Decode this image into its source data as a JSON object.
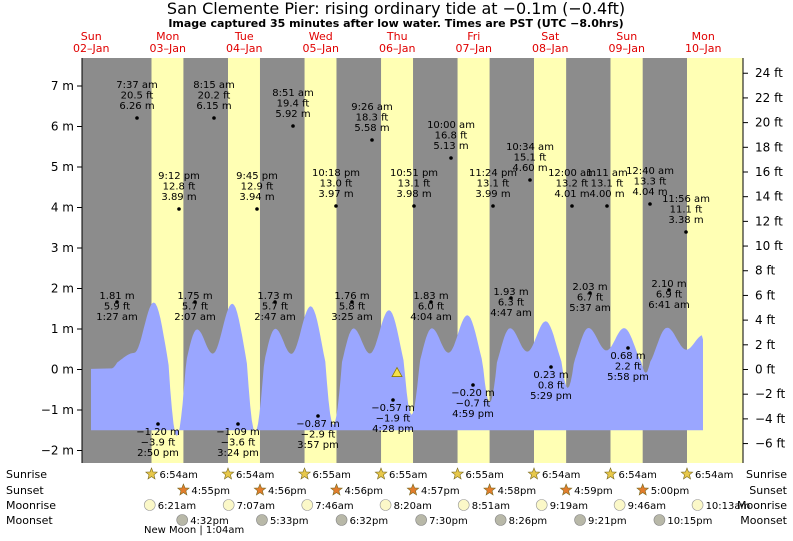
{
  "title": "San Clemente Pier: rising  ordinary tide at −0.1m (−0.4ft)",
  "subtitle": "Image captured 35 minutes after low water. Times are PST (UTC −8.0hrs)",
  "days": [
    {
      "dow": "Sun",
      "date": "02–Jan"
    },
    {
      "dow": "Mon",
      "date": "03–Jan"
    },
    {
      "dow": "Tue",
      "date": "04–Jan"
    },
    {
      "dow": "Wed",
      "date": "05–Jan"
    },
    {
      "dow": "Thu",
      "date": "06–Jan"
    },
    {
      "dow": "Fri",
      "date": "07–Jan"
    },
    {
      "dow": "Sat",
      "date": "08–Jan"
    },
    {
      "dow": "Sun",
      "date": "09–Jan"
    },
    {
      "dow": "Mon",
      "date": "10–Jan"
    }
  ],
  "row_labels": {
    "sunrise": "Sunrise",
    "sunset": "Sunset",
    "moonrise": "Moonrise",
    "moonset": "Moonset"
  },
  "sunrise": [
    "6:54am",
    "6:54am",
    "6:55am",
    "6:55am",
    "6:55am",
    "6:54am",
    "6:54am",
    "6:54am"
  ],
  "sunset": [
    "4:55pm",
    "4:56pm",
    "4:56pm",
    "4:57pm",
    "4:58pm",
    "4:59pm",
    "5:00pm"
  ],
  "moonrise": [
    "6:21am",
    "7:07am",
    "7:46am",
    "8:20am",
    "8:51am",
    "9:19am",
    "9:46am",
    "10:13am"
  ],
  "moonset": [
    "4:32pm",
    "5:33pm",
    "6:32pm",
    "7:30pm",
    "8:26pm",
    "9:21pm",
    "10:15pm"
  ],
  "new_moon": "New Moon | 1:04am",
  "colors": {
    "night": "#8c8c8c",
    "day": "#ffffb4",
    "water": "#9aa6ff",
    "day_label": "#e00000",
    "sun_star": "#e8c84a",
    "sunset_star": "#e27d2c",
    "moon_disc": "#fbf8c8",
    "moon_dark": "#b8b8a8"
  },
  "chart_data": {
    "type": "area",
    "title": "San Clemente Pier: rising  ordinary tide at −0.1m (−0.4ft)",
    "y_units_left": "m",
    "y_units_right": "ft",
    "ylim_m": [
      -2.3,
      7.5
    ],
    "yticks_left": [
      "−2 m",
      "−1 m",
      "0 m",
      "1 m",
      "2 m",
      "3 m",
      "4 m",
      "5 m",
      "6 m",
      "7 m"
    ],
    "yticks_right": [
      "−6 ft",
      "−4 ft",
      "−2 ft",
      "0 ft",
      "2 ft",
      "4 ft",
      "6 ft",
      "8 ft",
      "10 ft",
      "12 ft",
      "14 ft",
      "16 ft",
      "18 ft",
      "20 ft",
      "22 ft",
      "24 ft"
    ],
    "current_level_m": -0.1,
    "tides": [
      {
        "type": "low",
        "day": "Sun 02–Jan",
        "time": "",
        "ft": "",
        "m": 0.8
      },
      {
        "type": "high",
        "day": "Mon 03–Jan",
        "time": "1:27 am",
        "ft": "5.9 ft",
        "m": 1.81
      },
      {
        "type": "high",
        "day": "Mon 03–Jan",
        "time": "7:37 am",
        "ft": "20.5 ft",
        "m": 6.26
      },
      {
        "type": "low",
        "day": "Mon 03–Jan",
        "time": "2:50 pm",
        "ft": "−3.9 ft",
        "m": -1.2
      },
      {
        "type": "high",
        "day": "Mon 03–Jan",
        "time": "9:12 pm",
        "ft": "12.8 ft",
        "m": 3.89
      },
      {
        "type": "high",
        "day": "Tue 04–Jan",
        "time": "2:07 am",
        "ft": "5.7 ft",
        "m": 1.75
      },
      {
        "type": "high",
        "day": "Tue 04–Jan",
        "time": "8:15 am",
        "ft": "20.2 ft",
        "m": 6.15
      },
      {
        "type": "low",
        "day": "Tue 04–Jan",
        "time": "3:24 pm",
        "ft": "−3.6 ft",
        "m": -1.09
      },
      {
        "type": "high",
        "day": "Tue 04–Jan",
        "time": "9:45 pm",
        "ft": "12.9 ft",
        "m": 3.94
      },
      {
        "type": "high",
        "day": "Wed 05–Jan",
        "time": "2:47 am",
        "ft": "5.7 ft",
        "m": 1.73
      },
      {
        "type": "high",
        "day": "Wed 05–Jan",
        "time": "8:51 am",
        "ft": "19.4 ft",
        "m": 5.92
      },
      {
        "type": "low",
        "day": "Wed 05–Jan",
        "time": "3:57 pm",
        "ft": "−2.9 ft",
        "m": -0.87
      },
      {
        "type": "high",
        "day": "Wed 05–Jan",
        "time": "10:18 pm",
        "ft": "13.0 ft",
        "m": 3.97
      },
      {
        "type": "high",
        "day": "Thu 06–Jan",
        "time": "3:25 am",
        "ft": "5.8 ft",
        "m": 1.76
      },
      {
        "type": "high",
        "day": "Thu 06–Jan",
        "time": "9:26 am",
        "ft": "18.3 ft",
        "m": 5.58
      },
      {
        "type": "low",
        "day": "Thu 06–Jan",
        "time": "4:28 pm",
        "ft": "−1.9 ft",
        "m": -0.57
      },
      {
        "type": "high",
        "day": "Thu 06–Jan",
        "time": "10:51 pm",
        "ft": "13.1 ft",
        "m": 3.98
      },
      {
        "type": "high",
        "day": "Fri 07–Jan",
        "time": "4:04 am",
        "ft": "6.0 ft",
        "m": 1.83
      },
      {
        "type": "high",
        "day": "Fri 07–Jan",
        "time": "10:00 am",
        "ft": "16.8 ft",
        "m": 5.13
      },
      {
        "type": "low",
        "day": "Fri 07–Jan",
        "time": "4:59 pm",
        "ft": "−0.7 ft",
        "m": -0.2
      },
      {
        "type": "high",
        "day": "Fri 07–Jan",
        "time": "11:24 pm",
        "ft": "13.1 ft",
        "m": 3.99
      },
      {
        "type": "high",
        "day": "Sat 08–Jan",
        "time": "4:47 am",
        "ft": "6.3 ft",
        "m": 1.93
      },
      {
        "type": "high",
        "day": "Sat 08–Jan",
        "time": "10:34 am",
        "ft": "15.1 ft",
        "m": 4.6
      },
      {
        "type": "low",
        "day": "Sat 08–Jan",
        "time": "5:29 pm",
        "ft": "0.8 ft",
        "m": 0.23
      },
      {
        "type": "high",
        "day": "Sat 08–Jan",
        "time": "12:00 am",
        "ft": "13.2 ft",
        "m": 4.01
      },
      {
        "type": "high",
        "day": "Sun 09–Jan",
        "time": "5:37 am",
        "ft": "6.7 ft",
        "m": 2.03
      },
      {
        "type": "high",
        "day": "Sun 09–Jan",
        "time": "1:11 am",
        "ft": "13.1 ft",
        "m": 4.0
      },
      {
        "type": "low",
        "day": "Sun 09–Jan",
        "time": "5:58 pm",
        "ft": "2.2 ft",
        "m": 0.68
      },
      {
        "type": "high",
        "day": "Mon 10–Jan",
        "time": "12:40 am",
        "ft": "13.3 ft",
        "m": 4.04
      },
      {
        "type": "high",
        "day": "Mon 10–Jan",
        "time": "6:41 am",
        "ft": "6.9 ft",
        "m": 2.1
      },
      {
        "type": "high",
        "day": "Mon 10–Jan",
        "time": "11:56 am",
        "ft": "11.1 ft",
        "m": 3.38
      }
    ]
  }
}
